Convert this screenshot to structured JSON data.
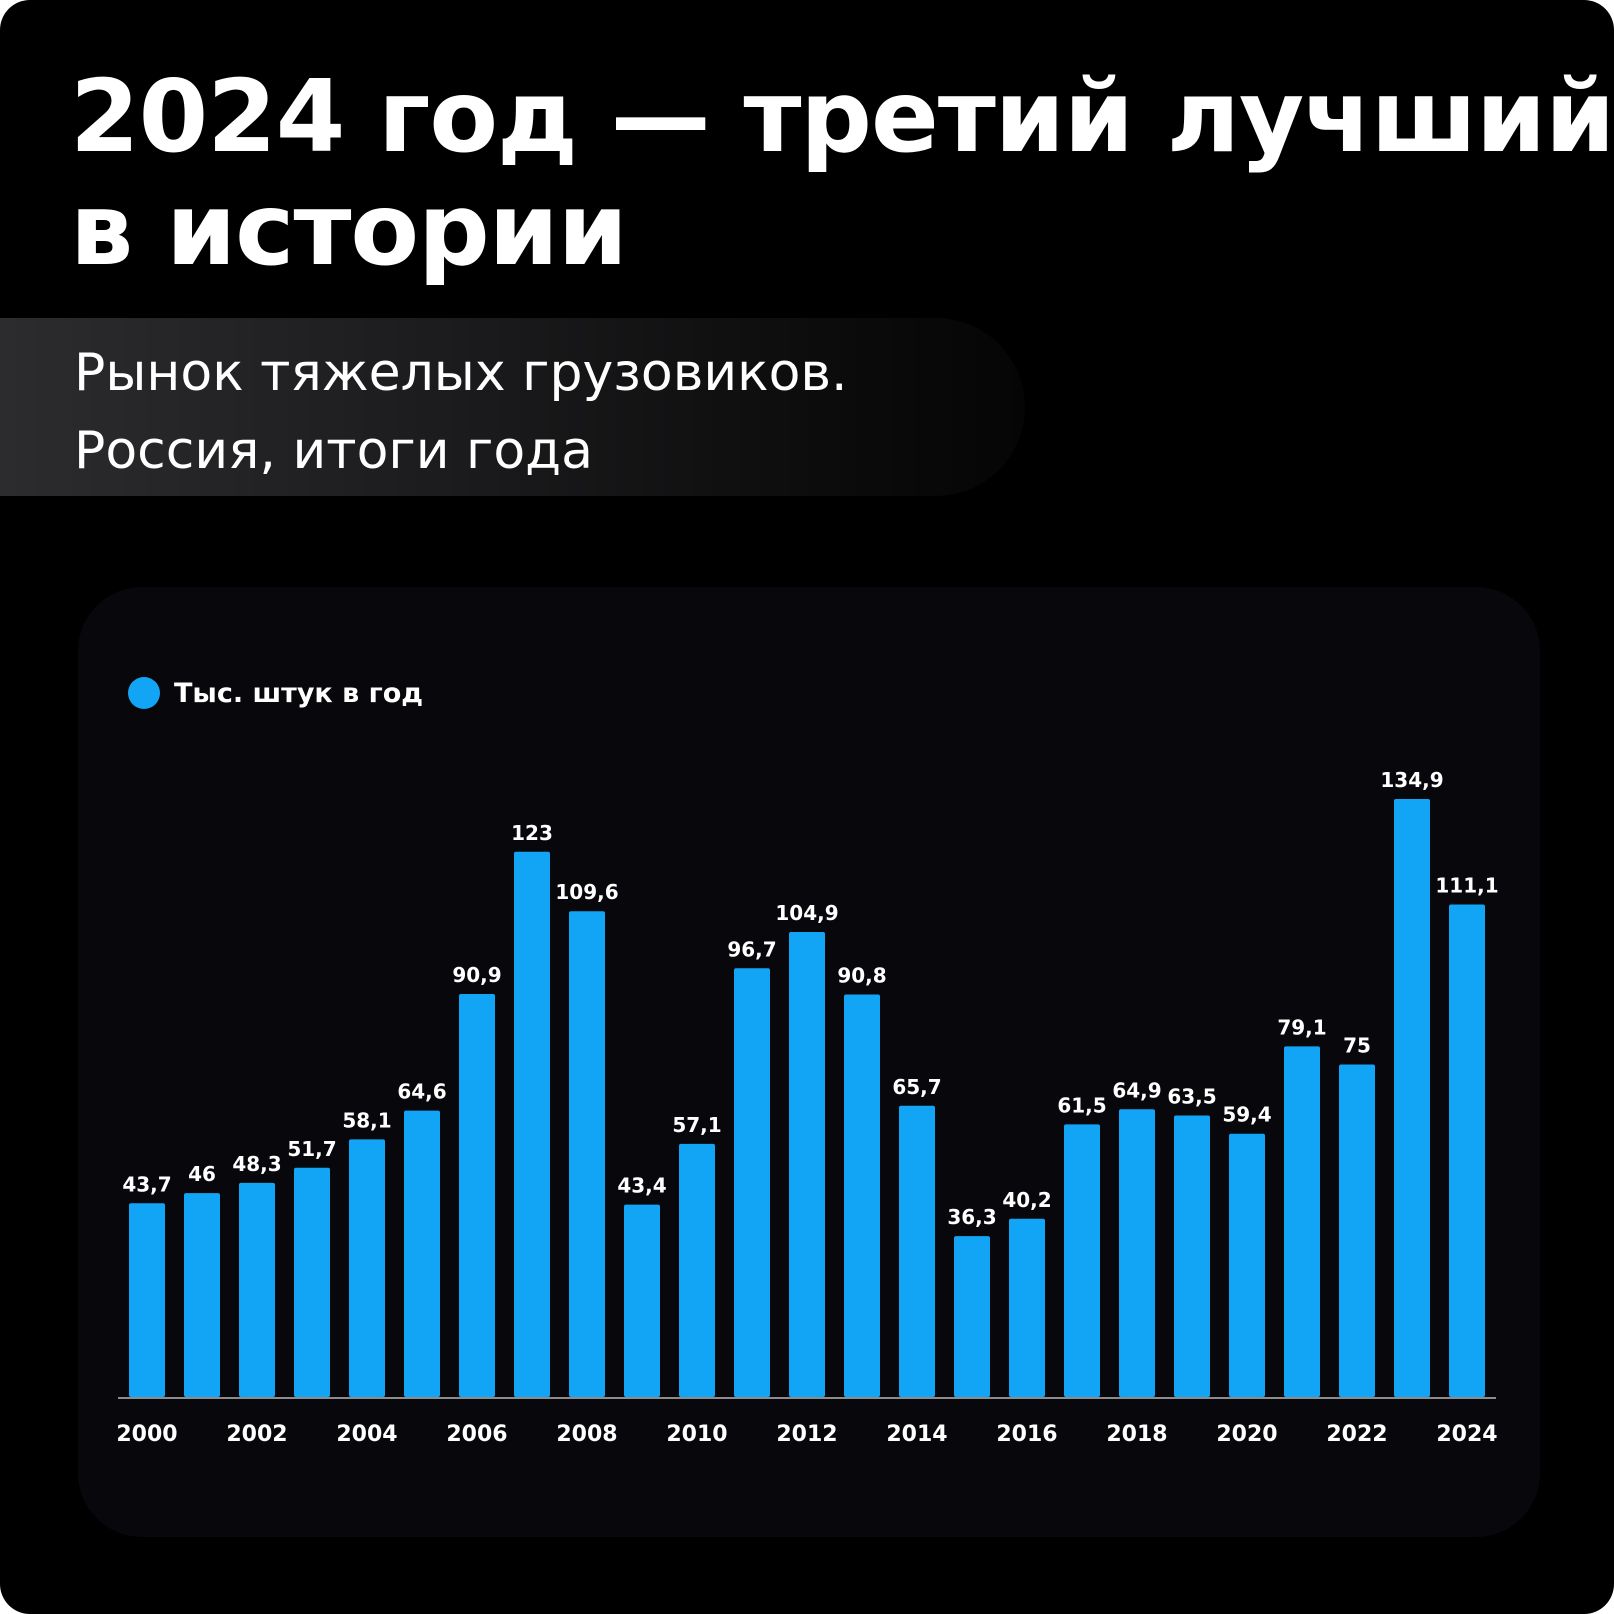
{
  "title": {
    "line1": "2024 год — третий лучший",
    "line2": "в истории"
  },
  "subtitle": {
    "line1": "Рынок тяжелых грузовиков.",
    "line2": "Россия, итоги года"
  },
  "colors": {
    "background": "#000000",
    "panel": "#08080c",
    "bar": "#12a5f5",
    "text": "#ffffff",
    "axis": "#8c8c8c"
  },
  "chart_data": {
    "type": "bar",
    "title": "",
    "xlabel": "",
    "ylabel": "",
    "ylim": [
      0,
      134.9
    ],
    "grid": false,
    "legend_position": "top-left",
    "categories": [
      2000,
      2001,
      2002,
      2003,
      2004,
      2005,
      2006,
      2007,
      2008,
      2009,
      2010,
      2011,
      2012,
      2013,
      2014,
      2015,
      2016,
      2017,
      2018,
      2019,
      2020,
      2021,
      2022,
      2023,
      2024
    ],
    "x_tick_labels": [
      "2000",
      "2002",
      "2004",
      "2006",
      "2008",
      "2010",
      "2012",
      "2014",
      "2016",
      "2018",
      "2020",
      "2022",
      "2024"
    ],
    "series": [
      {
        "name": "Тыс. штук в год",
        "color": "#12a5f5",
        "values": [
          43.7,
          46,
          48.3,
          51.7,
          58.1,
          64.6,
          90.9,
          123,
          109.6,
          43.4,
          57.1,
          96.7,
          104.9,
          90.8,
          65.7,
          36.3,
          40.2,
          61.5,
          64.9,
          63.5,
          59.4,
          79.1,
          75,
          134.9,
          111.1
        ],
        "labels": [
          "43,7",
          "46",
          "48,3",
          "51,7",
          "58,1",
          "64,6",
          "90,9",
          "123",
          "109,6",
          "43,4",
          "57,1",
          "96,7",
          "104,9",
          "90,8",
          "65,7",
          "36,3",
          "40,2",
          "61,5",
          "64,9",
          "63,5",
          "59,4",
          "79,1",
          "75",
          "134,9",
          "111,1"
        ]
      }
    ]
  }
}
